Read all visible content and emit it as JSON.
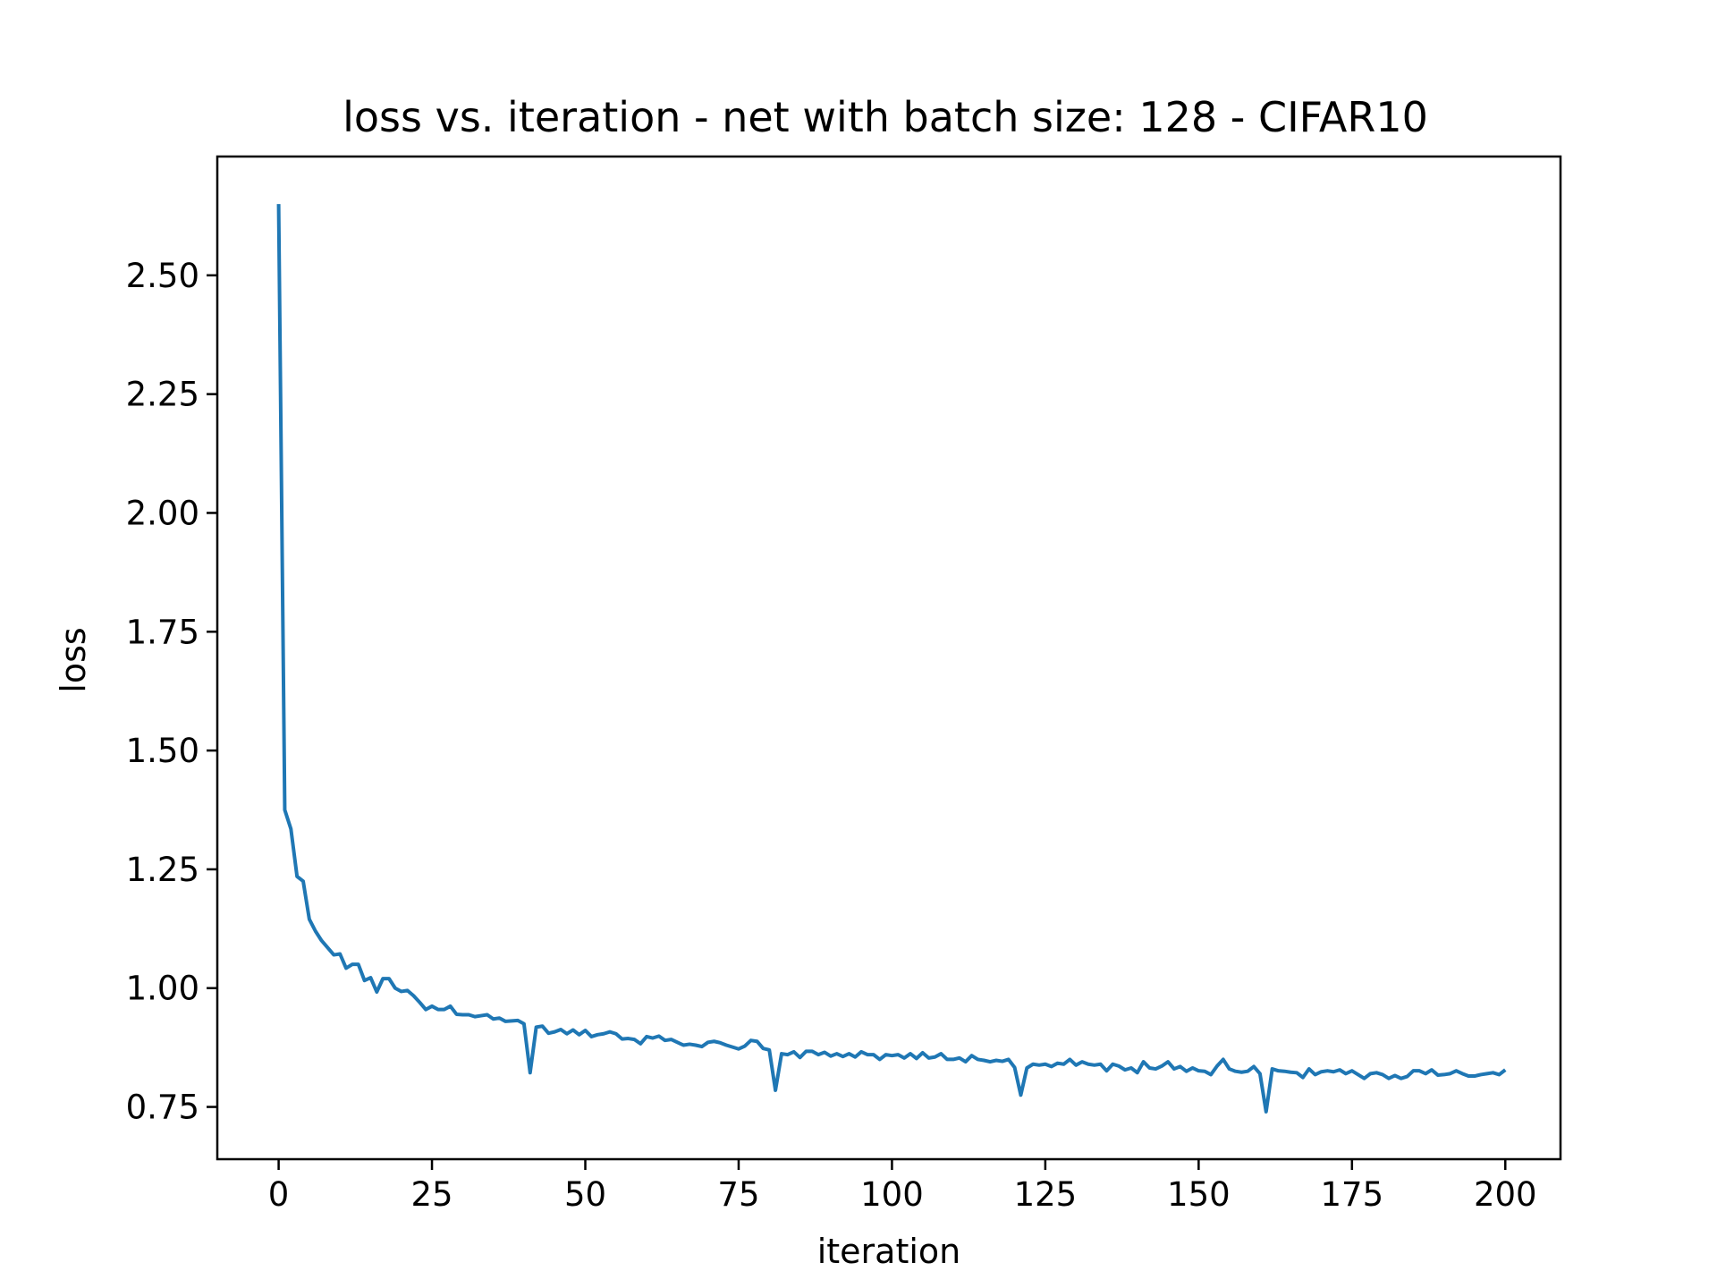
{
  "chart_data": {
    "type": "line",
    "title": "loss vs. iteration - net with batch size: 128 - CIFAR10",
    "xlabel": "iteration",
    "ylabel": "loss",
    "xlim": [
      -10,
      209
    ],
    "ylim": [
      0.64,
      2.75
    ],
    "xticks": [
      0,
      25,
      50,
      75,
      100,
      125,
      150,
      175,
      200
    ],
    "xtick_labels": [
      "0",
      "25",
      "50",
      "75",
      "100",
      "125",
      "150",
      "175",
      "200"
    ],
    "yticks": [
      0.75,
      1.0,
      1.25,
      1.5,
      1.75,
      2.0,
      2.25,
      2.5
    ],
    "ytick_labels": [
      "0.75",
      "1.00",
      "1.25",
      "1.50",
      "1.75",
      "2.00",
      "2.25",
      "2.50"
    ],
    "grid": false,
    "line_color": "#1f77b4",
    "series": [
      {
        "x_start": 0,
        "x_step": 1,
        "values": [
          2.65,
          1.375,
          1.335,
          1.235,
          1.225,
          1.145,
          1.12,
          1.1,
          1.085,
          1.07,
          1.072,
          1.042,
          1.05,
          1.05,
          1.016,
          1.022,
          0.992,
          1.02,
          1.02,
          1.0,
          0.993,
          0.995,
          0.984,
          0.97,
          0.955,
          0.962,
          0.955,
          0.955,
          0.962,
          0.945,
          0.944,
          0.944,
          0.94,
          0.942,
          0.944,
          0.935,
          0.937,
          0.93,
          0.931,
          0.932,
          0.925,
          0.822,
          0.918,
          0.92,
          0.905,
          0.908,
          0.913,
          0.904,
          0.912,
          0.902,
          0.911,
          0.898,
          0.902,
          0.904,
          0.908,
          0.904,
          0.893,
          0.894,
          0.892,
          0.883,
          0.898,
          0.895,
          0.899,
          0.89,
          0.892,
          0.886,
          0.88,
          0.882,
          0.88,
          0.877,
          0.886,
          0.888,
          0.885,
          0.88,
          0.876,
          0.872,
          0.878,
          0.89,
          0.888,
          0.873,
          0.87,
          0.785,
          0.862,
          0.86,
          0.866,
          0.854,
          0.867,
          0.867,
          0.86,
          0.865,
          0.857,
          0.862,
          0.856,
          0.862,
          0.855,
          0.866,
          0.86,
          0.86,
          0.85,
          0.86,
          0.858,
          0.86,
          0.853,
          0.862,
          0.852,
          0.864,
          0.853,
          0.855,
          0.862,
          0.85,
          0.85,
          0.853,
          0.845,
          0.858,
          0.85,
          0.848,
          0.845,
          0.848,
          0.846,
          0.85,
          0.833,
          0.775,
          0.832,
          0.84,
          0.838,
          0.84,
          0.835,
          0.842,
          0.84,
          0.85,
          0.838,
          0.845,
          0.84,
          0.838,
          0.84,
          0.826,
          0.84,
          0.836,
          0.828,
          0.832,
          0.822,
          0.845,
          0.832,
          0.83,
          0.836,
          0.845,
          0.83,
          0.835,
          0.825,
          0.832,
          0.826,
          0.825,
          0.818,
          0.836,
          0.85,
          0.83,
          0.825,
          0.823,
          0.825,
          0.835,
          0.82,
          0.74,
          0.83,
          0.826,
          0.825,
          0.823,
          0.822,
          0.812,
          0.83,
          0.818,
          0.824,
          0.826,
          0.824,
          0.828,
          0.82,
          0.826,
          0.818,
          0.81,
          0.82,
          0.822,
          0.818,
          0.81,
          0.816,
          0.81,
          0.814,
          0.826,
          0.826,
          0.82,
          0.828,
          0.817,
          0.818,
          0.82,
          0.826,
          0.82,
          0.815,
          0.815,
          0.818,
          0.82,
          0.822,
          0.818,
          0.828
        ]
      }
    ]
  }
}
